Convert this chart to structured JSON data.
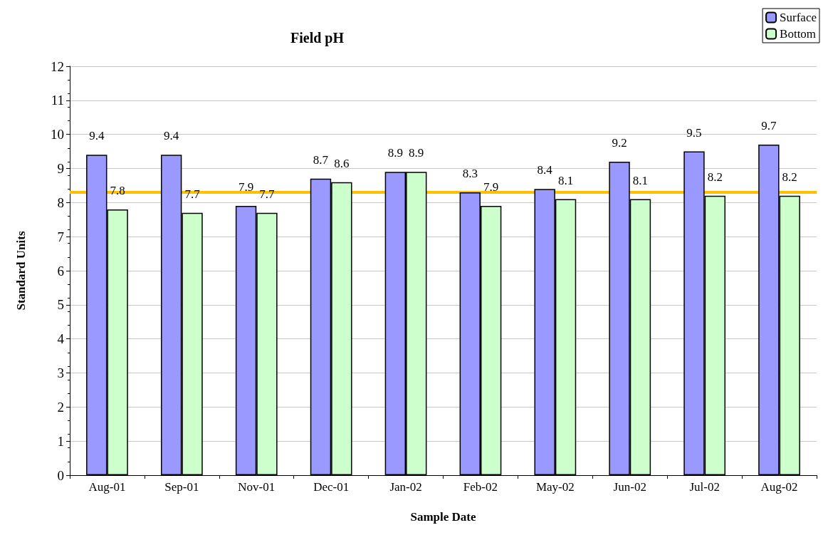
{
  "chart_data": {
    "type": "bar",
    "title": "Field pH",
    "xlabel": "Sample Date",
    "ylabel": "Standard Units",
    "categories": [
      "Aug-01",
      "Sep-01",
      "Nov-01",
      "Dec-01",
      "Jan-02",
      "Feb-02",
      "May-02",
      "Jun-02",
      "Jul-02",
      "Aug-02"
    ],
    "series": [
      {
        "name": "Surface",
        "color": "#9999ff",
        "values": [
          9.4,
          9.4,
          7.9,
          8.7,
          8.9,
          8.3,
          8.4,
          9.2,
          9.5,
          9.7
        ]
      },
      {
        "name": "Bottom",
        "color": "#ccffcc",
        "values": [
          7.8,
          7.7,
          7.7,
          8.6,
          8.9,
          7.9,
          8.1,
          8.1,
          8.2,
          8.2
        ]
      }
    ],
    "ylim": [
      0,
      12
    ],
    "yticks": [
      0,
      1,
      2,
      3,
      4,
      5,
      6,
      7,
      8,
      9,
      10,
      11,
      12
    ],
    "grid": "y",
    "legend": "top right",
    "data_labels": true,
    "ref_lines": [
      {
        "axis": "y",
        "value": 8.3,
        "color": "#ffc000"
      }
    ]
  }
}
